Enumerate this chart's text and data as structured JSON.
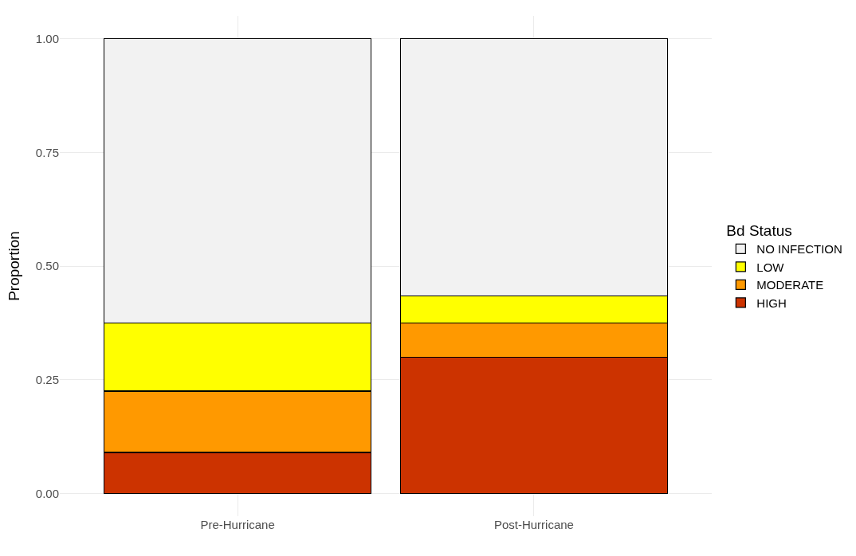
{
  "chart_data": {
    "type": "bar",
    "stacked": true,
    "ylabel": "Proportion",
    "legend_title": "Bd Status",
    "categories": [
      "Pre-Hurricane",
      "Post-Hurricane"
    ],
    "series": [
      {
        "name": "HIGH",
        "color": "#cc3300",
        "values": [
          0.09,
          0.3
        ]
      },
      {
        "name": "MODERATE",
        "color": "#ff9900",
        "values": [
          0.135,
          0.075
        ]
      },
      {
        "name": "LOW",
        "color": "#ffff00",
        "values": [
          0.15,
          0.06
        ]
      },
      {
        "name": "NO INFECTION",
        "color": "#f2f2f2",
        "values": [
          0.625,
          0.565
        ]
      }
    ],
    "ylim": [
      -0.05,
      1.05
    ],
    "yticks": [
      {
        "value": 0,
        "label": "0.00"
      },
      {
        "value": 0.25,
        "label": "0.25"
      },
      {
        "value": 0.5,
        "label": "0.50"
      },
      {
        "value": 0.75,
        "label": "0.75"
      },
      {
        "value": 1,
        "label": "1.00"
      }
    ],
    "grid": true,
    "legend": "right"
  }
}
